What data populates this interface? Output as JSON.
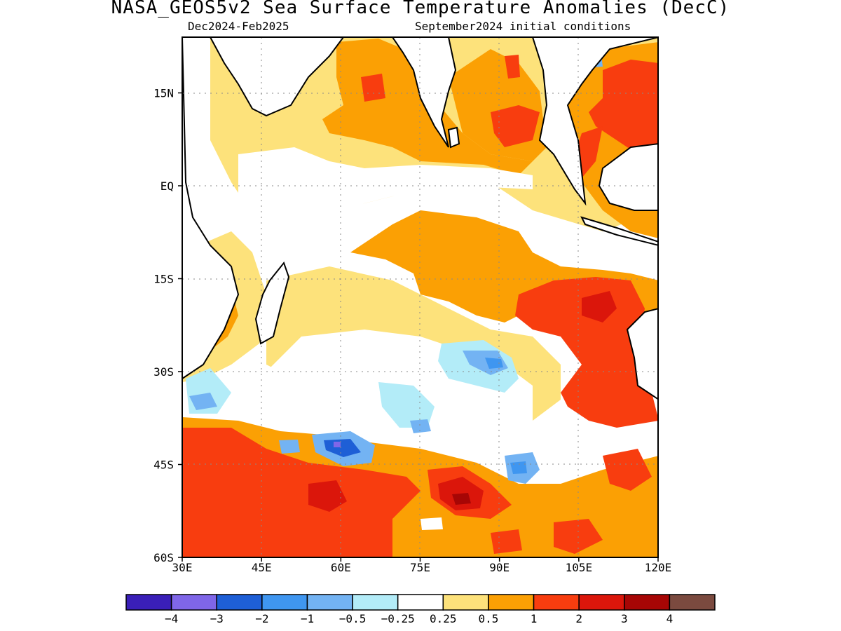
{
  "title": "NASA_GEOS5v2 Sea Surface Temperature Anomalies (DecC)",
  "subtitle_left": "Dec2024-Feb2025",
  "subtitle_right": "September2024 initial conditions",
  "lon_ticks": [
    {
      "label": "30E",
      "lon": 30
    },
    {
      "label": "45E",
      "lon": 45
    },
    {
      "label": "60E",
      "lon": 60
    },
    {
      "label": "75E",
      "lon": 75
    },
    {
      "label": "90E",
      "lon": 90
    },
    {
      "label": "105E",
      "lon": 105
    },
    {
      "label": "120E",
      "lon": 120
    }
  ],
  "lat_ticks": [
    {
      "label": "15N",
      "lat": 15
    },
    {
      "label": "EQ",
      "lat": 0
    },
    {
      "label": "15S",
      "lat": -15
    },
    {
      "label": "30S",
      "lat": -30
    },
    {
      "label": "45S",
      "lat": -45
    },
    {
      "label": "60S",
      "lat": -60
    }
  ],
  "map_extent": {
    "lon": [
      30,
      120
    ],
    "lat": [
      -60,
      24
    ]
  },
  "colorbar": {
    "colors": [
      "#3a1fb8",
      "#7f66e8",
      "#1e5fd6",
      "#3f96f0",
      "#73b3f3",
      "#b3ecf8",
      "#ffffff",
      "#fde27b",
      "#fba004",
      "#f83d0f",
      "#db160b",
      "#a70605",
      "#7b4a3f"
    ],
    "labels": [
      "-4",
      "-3",
      "-2",
      "-1",
      "-0.5",
      "-0.25",
      "0.25",
      "0.5",
      "1",
      "2",
      "3",
      "4"
    ]
  }
}
